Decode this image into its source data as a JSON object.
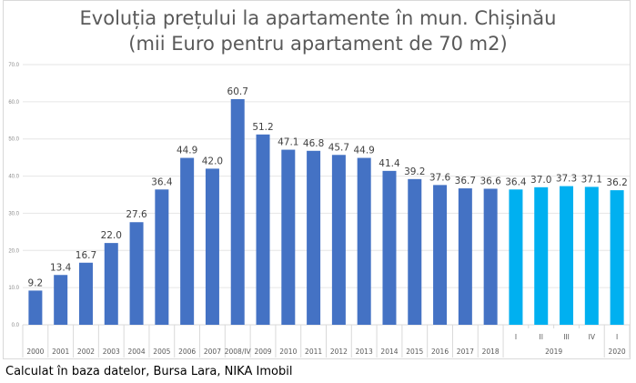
{
  "chart_data": {
    "type": "bar",
    "title_line1": "Evoluția prețului la apartamente în mun. Chișinău",
    "title_line2": "(mii Euro pentru apartament de 70 m2)",
    "categories": [
      "2000",
      "2001",
      "2002",
      "2003",
      "2004",
      "2005",
      "2006",
      "2007",
      "2008/IV",
      "2009",
      "2010",
      "2011",
      "2012",
      "2013",
      "2014",
      "2015",
      "2016",
      "2017",
      "2018",
      "I",
      "II",
      "III",
      "IV",
      "I"
    ],
    "group_labels": [
      {
        "label": "2019",
        "from": 19,
        "to": 22
      },
      {
        "label": "2020",
        "from": 23,
        "to": 23
      }
    ],
    "values": [
      9.2,
      13.4,
      16.7,
      22.0,
      27.6,
      36.4,
      44.9,
      42.0,
      60.7,
      51.2,
      47.1,
      46.8,
      45.7,
      44.9,
      41.4,
      39.2,
      37.6,
      36.7,
      36.6,
      36.4,
      37.0,
      37.3,
      37.1,
      36.2
    ],
    "data_labels": [
      "9.2",
      "13.4",
      "16.7",
      "22.0",
      "27.6",
      "36.4",
      "44.9",
      "42.0",
      "60.7",
      "51.2",
      "47.1",
      "46.8",
      "45.7",
      "44.9",
      "41.4",
      "39.2",
      "37.6",
      "36.7",
      "36.6",
      "36.4",
      "37.0",
      "37.3",
      "37.1",
      "36.2"
    ],
    "ylim": [
      0,
      70
    ],
    "yticks": [
      "0.0",
      "10.0",
      "20.0",
      "30.0",
      "40.0",
      "50.0",
      "60.0",
      "70.0"
    ],
    "grid": true,
    "colors": {
      "annual": "#4472c4",
      "quarterly": "#00b0f0"
    },
    "color_split_index": 19
  },
  "footer": "Calculat în baza datelor, Bursa Lara, NIKA Imobil"
}
